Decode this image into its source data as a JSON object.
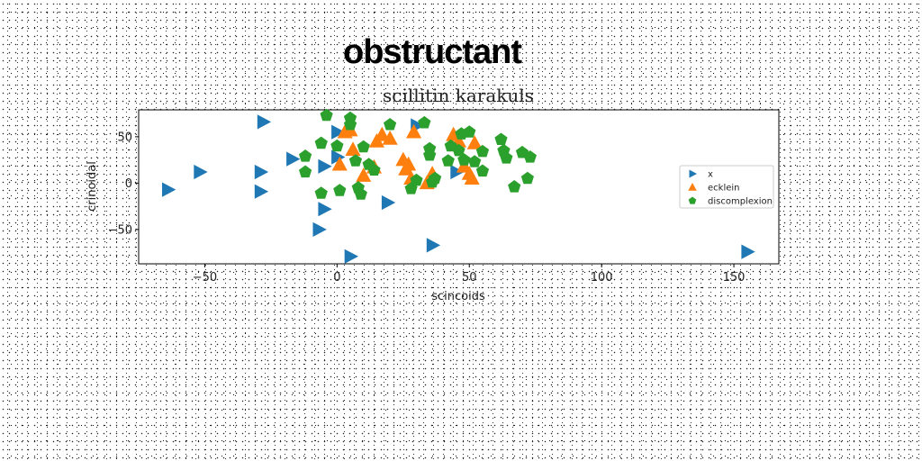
{
  "chart_data": {
    "type": "scatter",
    "suptitle": "obstructant",
    "title": "scillitin karakuls",
    "xlabel": "scincoids",
    "ylabel": "crinoidal",
    "xlim": [
      -75,
      167
    ],
    "ylim": [
      -87,
      79
    ],
    "xticks": [
      -50,
      0,
      50,
      100,
      150
    ],
    "yticks": [
      -50,
      0,
      50
    ],
    "grid": false,
    "legend_position": "center-right",
    "series": [
      {
        "name": "x",
        "marker": "triangle-right",
        "color": "#1f77b4",
        "points": [
          [
            -28,
            66
          ],
          [
            -64,
            -7
          ],
          [
            -52,
            12
          ],
          [
            -29,
            12
          ],
          [
            -29,
            -9
          ],
          [
            -17,
            26
          ],
          [
            -5,
            18
          ],
          [
            0,
            55
          ],
          [
            0,
            28
          ],
          [
            -5,
            -28
          ],
          [
            -7,
            -50
          ],
          [
            5,
            -79
          ],
          [
            19,
            -21
          ],
          [
            36,
            -67
          ],
          [
            45,
            12
          ],
          [
            30,
            62
          ],
          [
            155,
            -74
          ]
        ]
      },
      {
        "name": "ecklein",
        "marker": "triangle-up",
        "color": "#ff7f0e",
        "points": [
          [
            1,
            20
          ],
          [
            3,
            55
          ],
          [
            5,
            57
          ],
          [
            6,
            36
          ],
          [
            10,
            8
          ],
          [
            14,
            17
          ],
          [
            15,
            45
          ],
          [
            17,
            52
          ],
          [
            20,
            48
          ],
          [
            25,
            25
          ],
          [
            26,
            15
          ],
          [
            27,
            20
          ],
          [
            28,
            5
          ],
          [
            29,
            55
          ],
          [
            34,
            0
          ],
          [
            36,
            10
          ],
          [
            44,
            52
          ],
          [
            46,
            45
          ],
          [
            48,
            18
          ],
          [
            50,
            10
          ],
          [
            51,
            5
          ],
          [
            52,
            43
          ]
        ]
      },
      {
        "name": "discomplexion",
        "marker": "pentagon",
        "color": "#2ca02c",
        "points": [
          [
            -12,
            29
          ],
          [
            -12,
            12
          ],
          [
            -6,
            43
          ],
          [
            -6,
            -11
          ],
          [
            -4,
            73
          ],
          [
            0,
            40
          ],
          [
            1,
            -8
          ],
          [
            5,
            70
          ],
          [
            5,
            63
          ],
          [
            7,
            24
          ],
          [
            8,
            -5
          ],
          [
            9,
            -12
          ],
          [
            10,
            39
          ],
          [
            12,
            20
          ],
          [
            14,
            14
          ],
          [
            20,
            63
          ],
          [
            28,
            -6
          ],
          [
            30,
            3
          ],
          [
            33,
            65
          ],
          [
            35,
            37
          ],
          [
            35,
            30
          ],
          [
            36,
            1
          ],
          [
            37,
            5
          ],
          [
            42,
            24
          ],
          [
            43,
            40
          ],
          [
            46,
            35
          ],
          [
            47,
            53
          ],
          [
            48,
            25
          ],
          [
            50,
            55
          ],
          [
            52,
            23
          ],
          [
            55,
            13
          ],
          [
            55,
            34
          ],
          [
            62,
            47
          ],
          [
            63,
            35
          ],
          [
            64,
            27
          ],
          [
            67,
            -4
          ],
          [
            70,
            33
          ],
          [
            72,
            5
          ],
          [
            73,
            28
          ]
        ]
      }
    ]
  }
}
